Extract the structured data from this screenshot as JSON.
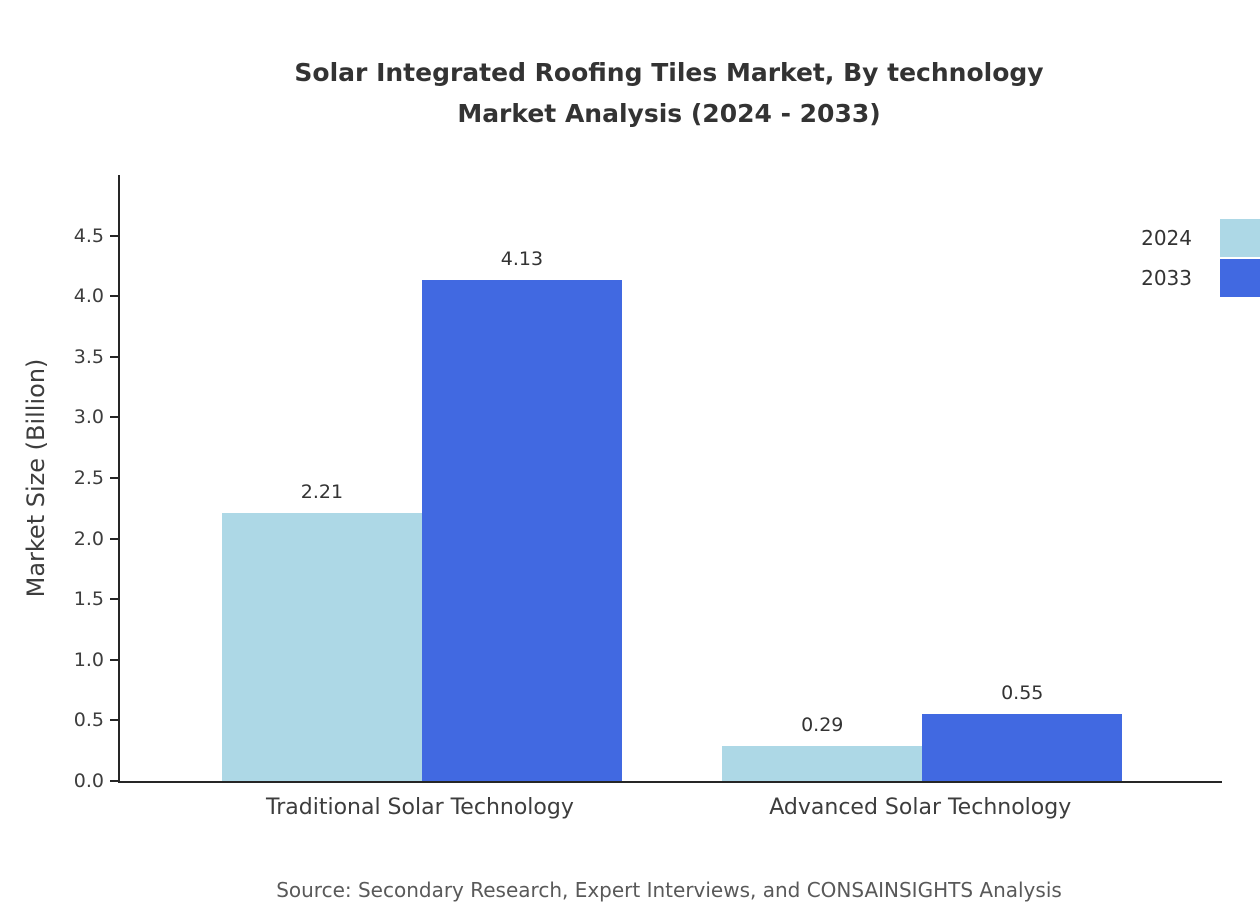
{
  "title": {
    "line1": "Solar Integrated Roofing Tiles Market, By technology",
    "line2": "Market Analysis (2024 - 2033)"
  },
  "source": "Source: Secondary Research, Expert Interviews, and CONSAINSIGHTS Analysis",
  "chart_data": {
    "type": "bar",
    "title": "Solar Integrated Roofing Tiles Market, By technology Market Analysis (2024 - 2033)",
    "xlabel": "",
    "ylabel": "Market Size (Billion)",
    "categories": [
      "Traditional Solar Technology",
      "Advanced Solar Technology"
    ],
    "series": [
      {
        "name": "2024",
        "color": "#ADD8E6",
        "values": [
          2.21,
          0.29
        ]
      },
      {
        "name": "2033",
        "color": "#4169E1",
        "values": [
          4.13,
          0.55
        ]
      }
    ],
    "value_labels": [
      "2.21",
      "4.13",
      "0.29",
      "0.55"
    ],
    "ylim": [
      0,
      5.0
    ],
    "yticks": [
      0.0,
      0.5,
      1.0,
      1.5,
      2.0,
      2.5,
      3.0,
      3.5,
      4.0,
      4.5
    ],
    "grid": false,
    "legend_position": "top-right"
  }
}
